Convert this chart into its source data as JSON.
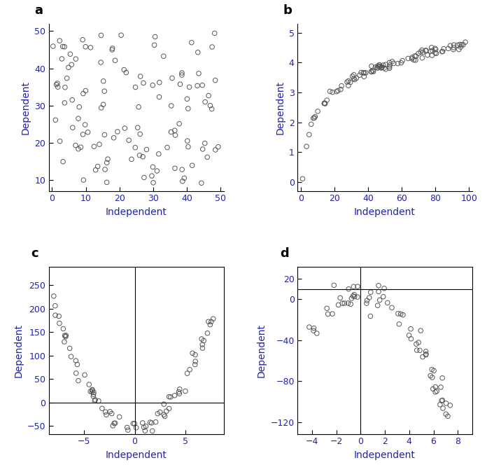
{
  "panel_a": {
    "label": "a",
    "xlabel": "Independent",
    "ylabel": "Dependent",
    "xlim": [
      -1,
      51
    ],
    "ylim": [
      7,
      52
    ],
    "xticks": [
      0,
      10,
      20,
      30,
      40,
      50
    ],
    "yticks": [
      10,
      20,
      30,
      40,
      50
    ],
    "box": false
  },
  "panel_b": {
    "label": "b",
    "xlabel": "Independent",
    "ylabel": "Dependent",
    "xlim": [
      -2,
      102
    ],
    "ylim": [
      -0.3,
      5.3
    ],
    "xticks": [
      0,
      20,
      40,
      60,
      80,
      100
    ],
    "yticks": [
      0,
      1,
      2,
      3,
      4,
      5
    ],
    "box": false
  },
  "panel_c": {
    "label": "c",
    "xlabel": "Independent",
    "ylabel": "Dependent",
    "xlim": [
      -8.5,
      8.8
    ],
    "ylim": [
      -68,
      290
    ],
    "xticks": [
      -5,
      0,
      5
    ],
    "yticks": [
      -50,
      0,
      50,
      100,
      150,
      200,
      250
    ],
    "hline": 0,
    "vline": 0,
    "box": true
  },
  "panel_d": {
    "label": "d",
    "xlabel": "Independent",
    "ylabel": "Dependent",
    "xlim": [
      -5.2,
      9.2
    ],
    "ylim": [
      -132,
      32
    ],
    "xticks": [
      -4,
      -2,
      0,
      2,
      4,
      6,
      8
    ],
    "yticks": [
      -120,
      -80,
      -40,
      0,
      20
    ],
    "hline": 10,
    "vline": 0,
    "box": true
  },
  "axis_color": "#2222aa",
  "label_color": "#2222aa",
  "panel_label_color": "#000000",
  "circle_edgecolor": "#555555",
  "circle_facecolor": "none",
  "circle_size": 22
}
